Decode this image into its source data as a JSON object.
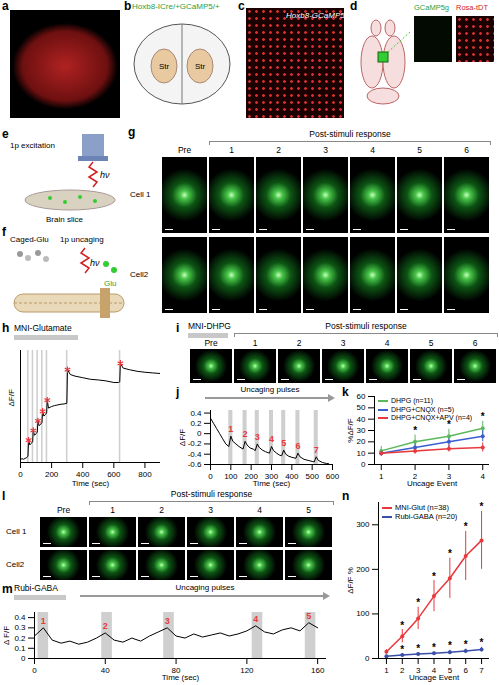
{
  "panels": {
    "a": {
      "letter": "a"
    },
    "b": {
      "letter": "b",
      "label": "Hoxb8-ICre/+GCaMP5/+",
      "regions": [
        "Str",
        "Str"
      ]
    },
    "c": {
      "letter": "c",
      "label": "Hoxb8-GCaMP5"
    },
    "d": {
      "letter": "d",
      "images": [
        "GCaMP5g",
        "Rosa-tDT"
      ]
    },
    "e": {
      "letter": "e",
      "light": "1p excitation",
      "photon": "hν",
      "sample": "Brain slice"
    },
    "f": {
      "letter": "f",
      "compound": "Caged-Glu",
      "light": "1p uncaging",
      "photon": "hν",
      "product": "Glu"
    },
    "g": {
      "letter": "g",
      "header": "Post-stimuli response",
      "columns": [
        "Pre",
        "1",
        "2",
        "3",
        "4",
        "5",
        "6"
      ],
      "rows": [
        "Cell 1",
        "Cell2"
      ]
    },
    "i": {
      "letter": "i",
      "title": "MNI-DHPG",
      "header": "Post-stimuli response",
      "columns": [
        "Pre",
        "1",
        "2",
        "3",
        "4",
        "5",
        "6"
      ]
    },
    "l": {
      "letter": "l",
      "header": "Post-stimuli response",
      "columns": [
        "Pre",
        "1",
        "2",
        "3",
        "4",
        "5"
      ],
      "rows": [
        "Cell 1",
        "Cell2"
      ]
    }
  },
  "chart_data": [
    {
      "panel": "h",
      "type": "line",
      "title": "MNI-Glutamate",
      "x_label": "Time (sec)",
      "y_label": "ΔF/F",
      "x": [
        0,
        10,
        20,
        30,
        40,
        48,
        52,
        60,
        70,
        78,
        82,
        90,
        100,
        108,
        112,
        120,
        130,
        138,
        142,
        150,
        160,
        168,
        172,
        180,
        200,
        220,
        240,
        260,
        280,
        298,
        302,
        320,
        350,
        400,
        450,
        500,
        550,
        600,
        630,
        638,
        642,
        660,
        700,
        750,
        800,
        850,
        900
      ],
      "values": [
        0.1,
        0.12,
        0.1,
        0.13,
        0.15,
        0.2,
        0.7,
        0.55,
        0.6,
        0.65,
        1.0,
        0.85,
        0.9,
        0.95,
        1.3,
        1.15,
        1.2,
        1.25,
        1.6,
        1.45,
        1.5,
        1.55,
        1.95,
        1.7,
        1.75,
        1.78,
        1.8,
        1.82,
        1.83,
        1.85,
        2.9,
        2.75,
        2.7,
        2.65,
        2.6,
        2.58,
        2.55,
        2.5,
        2.5,
        2.52,
        3.1,
        2.95,
        2.9,
        2.85,
        2.82,
        2.8,
        2.78
      ],
      "color": "#000000",
      "stimuli": [
        [
          45,
          55
        ],
        [
          75,
          85
        ],
        [
          105,
          115
        ],
        [
          135,
          145
        ],
        [
          165,
          175
        ],
        [
          295,
          305
        ],
        [
          635,
          645
        ]
      ],
      "marker": "asterisk",
      "xlim": [
        0,
        900
      ],
      "xticks": [
        0,
        200,
        400,
        600,
        800
      ],
      "ylim": [
        0,
        3.5
      ],
      "tick_labels": "x"
    },
    {
      "panel": "j",
      "type": "line",
      "annotation": "Uncaging pulses",
      "x_label": "Time (sec)",
      "y_label": "ΔF/F",
      "x": [
        0,
        15,
        30,
        45,
        60,
        75,
        90,
        100,
        110,
        125,
        140,
        160,
        170,
        180,
        195,
        210,
        220,
        230,
        240,
        255,
        270,
        290,
        300,
        310,
        325,
        340,
        350,
        360,
        370,
        385,
        400,
        420,
        430,
        440,
        460,
        480,
        500,
        510,
        520,
        530,
        550,
        570,
        580
      ],
      "values": [
        0.3,
        0.2,
        0.1,
        0.0,
        -0.1,
        -0.2,
        -0.25,
        -0.05,
        -0.15,
        -0.2,
        -0.25,
        -0.3,
        -0.15,
        -0.22,
        -0.28,
        -0.3,
        -0.33,
        -0.2,
        -0.27,
        -0.32,
        -0.35,
        -0.38,
        -0.25,
        -0.33,
        -0.38,
        -0.42,
        -0.43,
        -0.32,
        -0.4,
        -0.44,
        -0.46,
        -0.48,
        -0.38,
        -0.45,
        -0.5,
        -0.52,
        -0.54,
        -0.55,
        -0.45,
        -0.52,
        -0.56,
        -0.58,
        -0.58
      ],
      "color": "#000000",
      "stimuli": [
        [
          90,
          110
        ],
        [
          160,
          180
        ],
        [
          220,
          240
        ],
        [
          290,
          310
        ],
        [
          350,
          370
        ],
        [
          420,
          440
        ],
        [
          510,
          530
        ]
      ],
      "pulse_labels": [
        "1",
        "2",
        "3",
        "4",
        "5",
        "6",
        "7"
      ],
      "xlim": [
        0,
        600
      ],
      "xticks": [
        0,
        100,
        200,
        300,
        400,
        500,
        600
      ],
      "ylim": [
        -0.6,
        0.45
      ],
      "yticks": [
        -0.6,
        -0.4,
        -0.2,
        0,
        0.2,
        0.4
      ]
    },
    {
      "panel": "k",
      "type": "line",
      "x_label": "Uncage Event",
      "y_label": "%ΔF/F",
      "x": [
        1,
        2,
        3,
        4
      ],
      "series": [
        {
          "name": "DHPG (n=11)",
          "color": "#5cb85c",
          "values": [
            12,
            20,
            25,
            32
          ],
          "errors": [
            4,
            6,
            6,
            6
          ],
          "significant": [
            2,
            3,
            4
          ]
        },
        {
          "name": "DHPG+CNQX (n=5)",
          "color": "#3a5fcd",
          "values": [
            10,
            15,
            20,
            25
          ],
          "errors": [
            3,
            4,
            5,
            5
          ]
        },
        {
          "name": "DHPG+CNQX+APV (n=4)",
          "color": "#e8383d",
          "values": [
            10,
            12,
            14,
            15
          ],
          "errors": [
            2,
            3,
            3,
            4
          ]
        }
      ],
      "significance_label": "*",
      "legend": "top-left",
      "marker": "circle",
      "xlim": [
        0.8,
        4.2
      ],
      "xticks": [
        1,
        2,
        3,
        4
      ],
      "ylim": [
        0,
        60
      ],
      "yticks": [
        0,
        10,
        20,
        30,
        40,
        50,
        60
      ]
    },
    {
      "panel": "m",
      "type": "line",
      "title": "Rubi-GABA",
      "annotation": "Uncaging pulses",
      "x_label": "Time (sec)",
      "y_label": "Δ F/F",
      "x": [
        0,
        5,
        10,
        15,
        20,
        25,
        30,
        35,
        40,
        45,
        50,
        55,
        60,
        65,
        70,
        75,
        80,
        85,
        90,
        95,
        100,
        105,
        110,
        115,
        120,
        125,
        130,
        135,
        140,
        145,
        150,
        155,
        160
      ],
      "values": [
        0.22,
        0.3,
        0.18,
        0.15,
        0.17,
        0.14,
        0.16,
        0.2,
        0.25,
        0.18,
        0.16,
        0.2,
        0.17,
        0.22,
        0.26,
        0.3,
        0.22,
        0.2,
        0.24,
        0.21,
        0.23,
        0.25,
        0.22,
        0.24,
        0.27,
        0.32,
        0.26,
        0.24,
        0.28,
        0.3,
        0.27,
        0.35,
        0.3
      ],
      "color": "#000000",
      "stimuli": [
        [
          2,
          8
        ],
        [
          38,
          44
        ],
        [
          73,
          79
        ],
        [
          123,
          129
        ],
        [
          153,
          159
        ]
      ],
      "pulse_labels": [
        "1",
        "2",
        "3",
        "4",
        "5"
      ],
      "xlim": [
        0,
        165
      ],
      "xticks": [
        0,
        40,
        80,
        120,
        160
      ],
      "ylim": [
        0,
        0.45
      ],
      "yticks": [
        0,
        0.1,
        0.2,
        0.3,
        0.4
      ]
    },
    {
      "panel": "n",
      "type": "line",
      "x_label": "Uncage Event",
      "y_label": "ΔF/F %",
      "x": [
        1,
        2,
        3,
        4,
        5,
        6,
        7
      ],
      "series": [
        {
          "name": "MNI-Glut (n=38)",
          "color": "#e8383d",
          "values": [
            15,
            50,
            90,
            140,
            180,
            230,
            265
          ],
          "errors": [
            5,
            15,
            25,
            35,
            45,
            55,
            65
          ],
          "significant": [
            2,
            3,
            4,
            5,
            6,
            7
          ]
        },
        {
          "name": "Rubi-GABA (n=20)",
          "color": "#3a4fa8",
          "values": [
            5,
            8,
            10,
            12,
            14,
            17,
            20
          ],
          "errors": [
            2,
            3,
            3,
            3,
            4,
            4,
            5
          ],
          "significant": [
            2,
            3,
            4,
            5,
            6,
            7
          ]
        }
      ],
      "significance_label": "*",
      "legend": "top-left",
      "marker": "circle",
      "xlim": [
        0.5,
        7.5
      ],
      "xticks": [
        1,
        2,
        3,
        4,
        5,
        6,
        7
      ],
      "ylim": [
        0,
        350
      ],
      "yticks": [
        0,
        100,
        200,
        300
      ]
    }
  ]
}
